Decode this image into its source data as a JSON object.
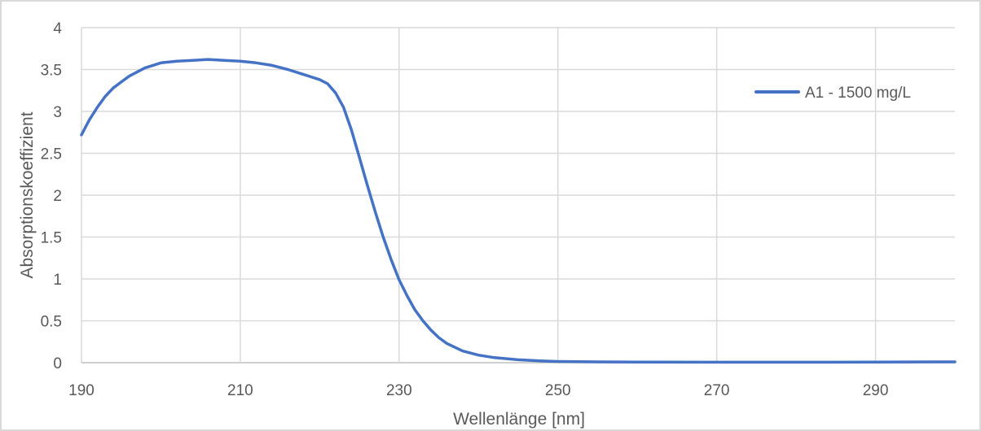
{
  "chart_data": {
    "type": "line",
    "title": "",
    "xlabel": "Wellenlänge [nm]",
    "ylabel": "Absorptionskoeffizient",
    "xlim": [
      190,
      300
    ],
    "ylim": [
      0,
      4
    ],
    "x_ticks": [
      "190",
      "210",
      "230",
      "250",
      "270",
      "290"
    ],
    "y_ticks": [
      "0",
      "0.5",
      "1",
      "1.5",
      "2",
      "2.5",
      "3",
      "3.5",
      "4"
    ],
    "grid": true,
    "legend_position": "top-right",
    "line_color": "#4472c4",
    "series": [
      {
        "name": "A1 - 1500 mg/L",
        "x": [
          190,
          191,
          192,
          193,
          194,
          195,
          196,
          197,
          198,
          199,
          200,
          202,
          204,
          206,
          208,
          210,
          212,
          214,
          216,
          218,
          220,
          221,
          222,
          223,
          224,
          225,
          226,
          227,
          228,
          229,
          230,
          231,
          232,
          233,
          234,
          235,
          236,
          238,
          240,
          242,
          245,
          248,
          250,
          255,
          260,
          270,
          280,
          290,
          300
        ],
        "y": [
          2.72,
          2.9,
          3.05,
          3.18,
          3.28,
          3.35,
          3.42,
          3.47,
          3.52,
          3.55,
          3.58,
          3.6,
          3.61,
          3.62,
          3.61,
          3.6,
          3.58,
          3.55,
          3.5,
          3.44,
          3.38,
          3.33,
          3.22,
          3.05,
          2.78,
          2.45,
          2.12,
          1.8,
          1.5,
          1.23,
          0.99,
          0.8,
          0.63,
          0.5,
          0.39,
          0.3,
          0.23,
          0.14,
          0.09,
          0.06,
          0.035,
          0.02,
          0.015,
          0.01,
          0.008,
          0.006,
          0.006,
          0.008,
          0.01
        ]
      }
    ]
  }
}
